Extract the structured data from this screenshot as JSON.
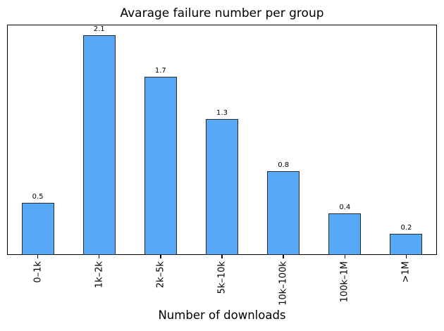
{
  "chart_data": {
    "type": "bar",
    "title": "Avarage failure number per group",
    "xlabel": "Number of downloads",
    "ylabel": "",
    "categories": [
      "0–1k",
      "1k–2k",
      "2k–5k",
      "5k–10k",
      "10k–100k",
      "100k–1M",
      ">1M"
    ],
    "values": [
      0.5,
      2.1,
      1.7,
      1.3,
      0.8,
      0.4,
      0.2
    ],
    "bar_labels": [
      "0.5",
      "2.1",
      "1.7",
      "1.3",
      "0.8",
      "0.4",
      "0.2"
    ],
    "ylim": [
      0,
      2.2
    ],
    "grid": false,
    "legend": "none",
    "x_tick_rotation_deg": 90,
    "bar_color": "#58a8f8",
    "bar_edge_color": "#2a2a2a",
    "axis_color": "#000000",
    "background_color": "#ffffff"
  }
}
